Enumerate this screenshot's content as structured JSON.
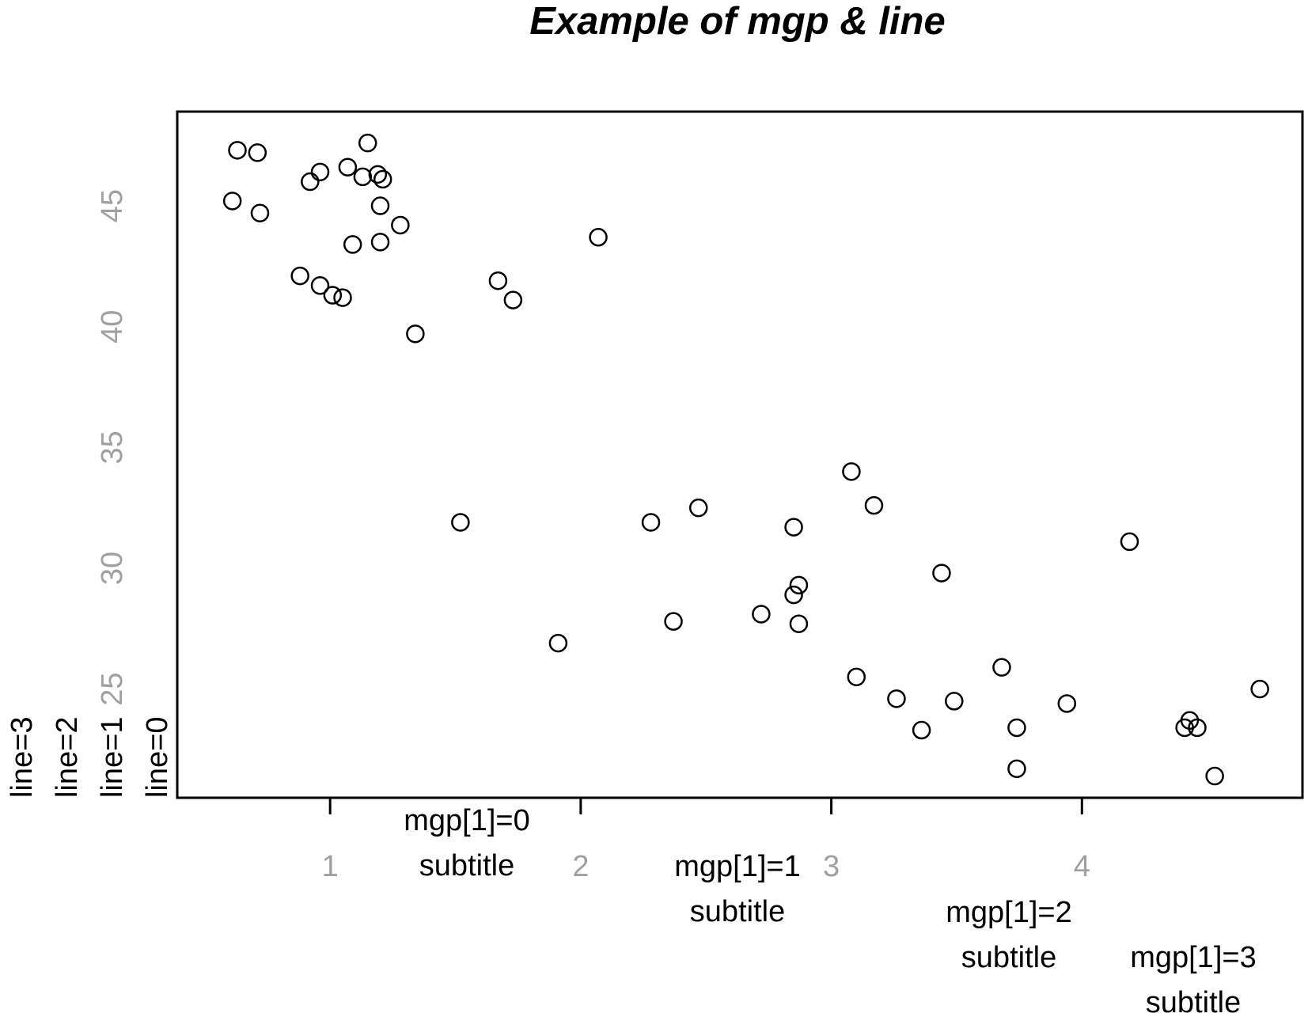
{
  "chart_data": {
    "type": "scatter",
    "title": "Example of mgp & line",
    "xlabel": "",
    "ylabel": "",
    "xlim": [
      0.39,
      4.88
    ],
    "ylim": [
      20.5,
      48.9
    ],
    "x_ticks": [
      1,
      2,
      3,
      4
    ],
    "y_ticks": [
      25,
      30,
      35,
      40,
      45
    ],
    "x_tick_labels": [
      "1",
      "2",
      "3",
      "4"
    ],
    "y_tick_labels": [
      "25",
      "30",
      "35",
      "40",
      "45"
    ],
    "grid": false,
    "marker": "open-circle",
    "colors": {
      "points": "#000000",
      "tick_labels": "#a0a0a0",
      "annotations": "#000000"
    },
    "points": [
      {
        "x": 0.61,
        "y": 45.2
      },
      {
        "x": 0.63,
        "y": 47.3
      },
      {
        "x": 0.71,
        "y": 47.2
      },
      {
        "x": 0.72,
        "y": 44.7
      },
      {
        "x": 0.88,
        "y": 42.1
      },
      {
        "x": 0.92,
        "y": 46.0
      },
      {
        "x": 0.96,
        "y": 46.4
      },
      {
        "x": 0.96,
        "y": 41.7
      },
      {
        "x": 1.01,
        "y": 41.3
      },
      {
        "x": 1.05,
        "y": 41.2
      },
      {
        "x": 1.07,
        "y": 46.6
      },
      {
        "x": 1.09,
        "y": 43.4
      },
      {
        "x": 1.13,
        "y": 46.2
      },
      {
        "x": 1.15,
        "y": 47.6
      },
      {
        "x": 1.19,
        "y": 46.3
      },
      {
        "x": 1.2,
        "y": 43.5
      },
      {
        "x": 1.2,
        "y": 45.0
      },
      {
        "x": 1.21,
        "y": 46.1
      },
      {
        "x": 1.28,
        "y": 44.2
      },
      {
        "x": 1.34,
        "y": 39.7
      },
      {
        "x": 1.52,
        "y": 31.9
      },
      {
        "x": 1.67,
        "y": 41.9
      },
      {
        "x": 1.73,
        "y": 41.1
      },
      {
        "x": 1.91,
        "y": 26.9
      },
      {
        "x": 2.07,
        "y": 43.7
      },
      {
        "x": 2.28,
        "y": 31.9
      },
      {
        "x": 2.37,
        "y": 27.8
      },
      {
        "x": 2.47,
        "y": 32.5
      },
      {
        "x": 2.72,
        "y": 28.1
      },
      {
        "x": 2.85,
        "y": 31.7
      },
      {
        "x": 2.85,
        "y": 28.9
      },
      {
        "x": 2.87,
        "y": 29.3
      },
      {
        "x": 2.87,
        "y": 27.7
      },
      {
        "x": 3.08,
        "y": 34.0
      },
      {
        "x": 3.1,
        "y": 25.5
      },
      {
        "x": 3.17,
        "y": 32.6
      },
      {
        "x": 3.26,
        "y": 24.6
      },
      {
        "x": 3.36,
        "y": 23.3
      },
      {
        "x": 3.44,
        "y": 29.8
      },
      {
        "x": 3.49,
        "y": 24.5
      },
      {
        "x": 3.68,
        "y": 25.9
      },
      {
        "x": 3.74,
        "y": 23.4
      },
      {
        "x": 3.74,
        "y": 21.7
      },
      {
        "x": 3.94,
        "y": 24.4
      },
      {
        "x": 4.19,
        "y": 31.1
      },
      {
        "x": 4.41,
        "y": 23.4
      },
      {
        "x": 4.43,
        "y": 23.7
      },
      {
        "x": 4.46,
        "y": 23.4
      },
      {
        "x": 4.53,
        "y": 21.4
      },
      {
        "x": 4.71,
        "y": 25.0
      }
    ],
    "line_annotations": [
      "line=3",
      "line=2",
      "line=1",
      "line=0"
    ],
    "mgp_annotations": [
      {
        "label": "mgp[1]=0",
        "sub": "subtitle"
      },
      {
        "label": "mgp[1]=1",
        "sub": "subtitle"
      },
      {
        "label": "mgp[1]=2",
        "sub": "subtitle"
      },
      {
        "label": "mgp[1]=3",
        "sub": "subtitle"
      }
    ]
  }
}
